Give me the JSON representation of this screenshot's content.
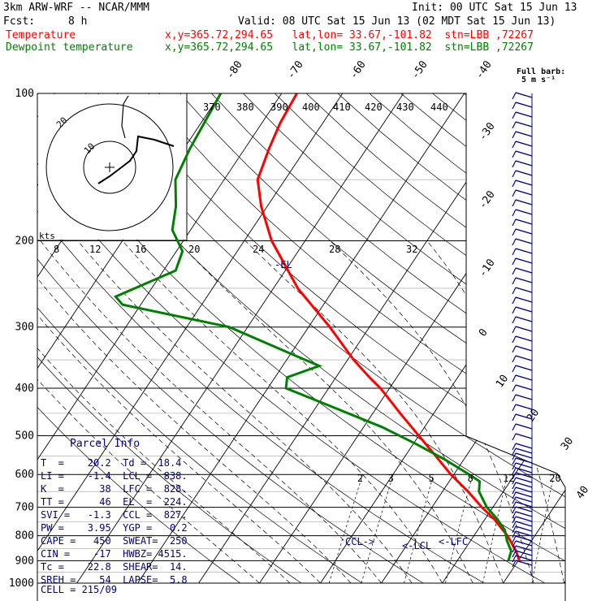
{
  "header": {
    "model": "3km ARW-WRF -- NCAR/MMM",
    "init": "Init: 00 UTC Sat 15 Jun 13",
    "fcst_label": "Fcst:",
    "fcst_value": "8 h",
    "valid": "Valid: 08 UTC Sat 15 Jun 13 (02 MDT Sat 15 Jun 13)",
    "temp_label": "Temperature",
    "temp_info": "x,y=365.72,294.65   lat,lon= 33.67,-101.82  stn=LBB ,72267",
    "dew_label": "Dewpoint temperature",
    "dew_info": "x,y=365.72,294.65   lat,lon= 33.67,-101.82  stn=LBB ,72267",
    "barb_label": "Full barb:",
    "barb_units": "5 m s⁻¹"
  },
  "colors": {
    "temperature": "#ff0000",
    "dewpoint": "#008000",
    "grid": "#000000",
    "info_text": "#00008b",
    "hodograph": "#000000"
  },
  "chart_data": {
    "type": "line",
    "title": "",
    "xlabel": "",
    "ylabel": "",
    "pressure_levels": [
      100,
      200,
      300,
      400,
      500,
      600,
      700,
      800,
      900,
      1000
    ],
    "isotherm_labels": [
      "-80",
      "-70",
      "-60",
      "-50",
      "-40",
      "-30",
      "-20",
      "-10",
      "0",
      "10",
      "20",
      "30",
      "40"
    ],
    "theta_labels": [
      "370",
      "380",
      "390",
      "400",
      "410",
      "420",
      "430",
      "440"
    ],
    "mixing_ratio_labels": [
      "2",
      "3",
      "5",
      "8",
      "12",
      "20"
    ],
    "hodo_speed_labels": [
      "8",
      "12",
      "16",
      "20",
      "24",
      "28",
      "32"
    ],
    "hodo_ring_labels": [
      "10",
      "20"
    ],
    "hodo_units": "kts",
    "series": [
      {
        "name": "Temperature",
        "pressure": [
          900,
          860,
          800,
          740,
          700,
          650,
          600,
          550,
          500,
          450,
          420,
          400,
          380,
          350,
          300,
          250,
          200,
          170,
          150,
          130,
          115,
          100
        ],
        "temperature_c": [
          20.2,
          18.6,
          15.5,
          11.5,
          8.2,
          4.2,
          -0.5,
          -5.0,
          -10.0,
          -15.5,
          -19.0,
          -21.5,
          -24.5,
          -29.0,
          -36.5,
          -46.0,
          -55.5,
          -61.0,
          -64.5,
          -66.0,
          -67.0,
          -67.5
        ]
      },
      {
        "name": "Dewpoint temperature",
        "pressure": [
          900,
          860,
          820,
          780,
          740,
          700,
          650,
          620,
          600,
          560,
          520,
          480,
          440,
          400,
          380,
          360,
          340,
          300,
          270,
          260,
          230,
          210,
          190,
          170,
          150,
          130,
          100
        ],
        "dewpoint_c": [
          18.4,
          17.8,
          16.0,
          14.5,
          12.0,
          9.0,
          6.0,
          5.0,
          2.5,
          -3.0,
          -9.5,
          -17.0,
          -26.5,
          -37.0,
          -38.0,
          -34.0,
          -40.0,
          -53.0,
          -73.0,
          -75.0,
          -68.0,
          -69.0,
          -73.0,
          -75.0,
          -78.0,
          -79.0,
          -80.0
        ]
      }
    ],
    "annotations": [
      "-EL",
      "CCL",
      "LCL",
      "-LFC"
    ]
  },
  "parcel_info": {
    "title": "Parcel Info",
    "rows": [
      "T  =    20.2  Td =  18.4",
      "LI =    -1.4  LCL =  838.",
      "K  =      38  LFC =  828.",
      "TT =      46  EL  =  224.",
      "SVI =   -1.3  CCL =  827.",
      "PW =    3.95  YGP =   0.2",
      "CAPE =   450  SWEAT=  250",
      "CIN =    -17  HWBZ= 4515.",
      "Tc =    22.8  SHEAR=  14.",
      "SREH =    54  LAPSE=  5.8",
      "CELL = 215/09"
    ]
  }
}
